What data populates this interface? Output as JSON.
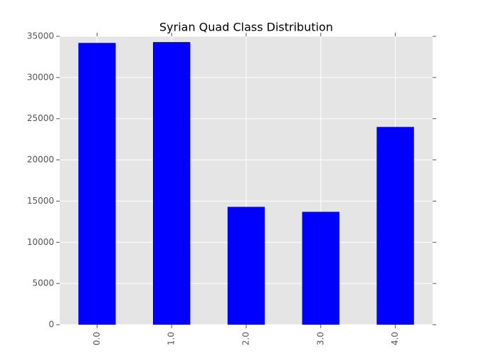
{
  "chart_data": {
    "type": "bar",
    "title": "Syrian Quad Class Distribution",
    "categories": [
      "0.0",
      "1.0",
      "2.0",
      "3.0",
      "4.0"
    ],
    "values": [
      34200,
      34300,
      14300,
      13700,
      24000
    ],
    "color": "#0000ff",
    "ylim": [
      0,
      35000
    ],
    "yticks": [
      0,
      5000,
      10000,
      15000,
      20000,
      25000,
      30000,
      35000
    ],
    "grid": true
  }
}
